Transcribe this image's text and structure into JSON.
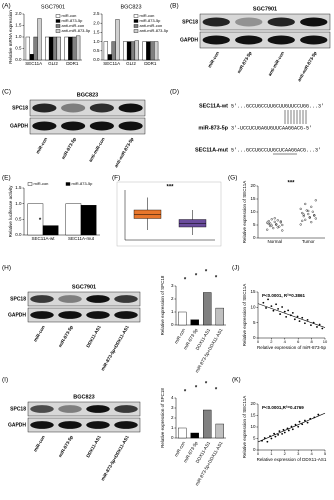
{
  "panel_labels": [
    "(A)",
    "(B)",
    "(C)",
    "(D)",
    "(E)",
    "(F)",
    "(G)",
    "(H)",
    "(I)",
    "(J)",
    "(K)"
  ],
  "blots": [
    {
      "cell": "SGC7901",
      "rows": [
        "SPC18",
        "GAPDH"
      ],
      "lanes": [
        "miR-con",
        "miR-873-5p",
        "anti-miR-con",
        "anti-miR-873-5p"
      ]
    },
    {
      "cell": "BGC823",
      "rows": [
        "SPC18",
        "GAPDH"
      ],
      "lanes": [
        "miR-con",
        "miR-873-5p",
        "anti-miR-con",
        "anti-miR-873-5p"
      ]
    },
    {
      "cell": "SGC7901",
      "rows": [
        "SPC18",
        "GAPDH"
      ],
      "lanes": [
        "miR-con",
        "miR-873-5p",
        "DDX11-AS1",
        "miR-873-5p+DDX11-AS1"
      ]
    },
    {
      "cell": "BGC823",
      "rows": [
        "SPC18",
        "GAPDH"
      ],
      "lanes": [
        "miR-con",
        "miR-873-5p",
        "DDX11-AS1",
        "miR-873-5p+DDX11-AS1"
      ]
    }
  ],
  "sequences": [
    {
      "name": "SEC11A-wt",
      "seq": "5'...GCCUGCCUUGCUUGUUCCUGG...3'"
    },
    {
      "name": "miR-873-5p",
      "seq": "3'-UCCUCUGAGUGUUCAAGGACG-5'"
    },
    {
      "name": "SEC11A-mut",
      "seq": "5'...GCCUGCCUUGCUCAAGGACG...3'"
    }
  ],
  "chart_data": [
    {
      "type": "grouped",
      "title": "SGC7901",
      "ylabel": "Relative mRNA expression",
      "categories": [
        "SEC11A",
        "GLI2",
        "DDR1"
      ],
      "series": [
        {
          "name": "miR-con",
          "color": "#ffffff",
          "values": [
            1.0,
            1.0,
            1.0
          ]
        },
        {
          "name": "miR-873-5p",
          "color": "#000000",
          "values": [
            0.25,
            1.0,
            1.0
          ]
        },
        {
          "name": "anti-miR-con",
          "color": "#808080",
          "values": [
            1.0,
            1.0,
            1.0
          ]
        },
        {
          "name": "anti-miR-873-5p",
          "color": "#d0d0d0",
          "values": [
            1.8,
            1.0,
            1.05
          ]
        }
      ],
      "ylim": [
        0,
        2
      ],
      "yticks": [
        {
          "value": 0,
          "label": "0.0"
        },
        {
          "value": 0.5,
          "label": "0.5"
        },
        {
          "value": 1,
          "label": "1.0"
        },
        {
          "value": 1.5,
          "label": "1.5"
        },
        {
          "value": 2,
          "label": "2.0"
        }
      ]
    },
    {
      "type": "grouped",
      "title": "BGC823",
      "categories": [
        "SEC11A",
        "GLI2",
        "DDR1"
      ],
      "series": [
        {
          "name": "miR-con",
          "color": "#ffffff",
          "values": [
            1.0,
            1.0,
            1.0
          ]
        },
        {
          "name": "miR-873-5p",
          "color": "#000000",
          "values": [
            0.3,
            1.0,
            1.0
          ]
        },
        {
          "name": "anti-miR-con",
          "color": "#808080",
          "values": [
            1.0,
            1.0,
            1.0
          ]
        },
        {
          "name": "anti-miR-873-5p",
          "color": "#d0d0d0",
          "values": [
            2.2,
            1.05,
            1.0
          ]
        }
      ],
      "ylim": [
        0,
        2.5
      ],
      "yticks": [
        {
          "value": 0,
          "label": "0.0"
        },
        {
          "value": 0.5,
          "label": "0.5"
        },
        {
          "value": 1,
          "label": "1.0"
        },
        {
          "value": 1.5,
          "label": "1.5"
        },
        {
          "value": 2,
          "label": "2.0"
        },
        {
          "value": 2.5,
          "label": "2.5"
        }
      ]
    },
    {
      "type": "grouped",
      "ylabel": "Relative luciferase activity",
      "categories": [
        "SEC11A-wt",
        "SEC11A-mut"
      ],
      "series": [
        {
          "name": "miR-con",
          "color": "#ffffff",
          "values": [
            1.0,
            1.0
          ]
        },
        {
          "name": "miR-873-5p",
          "color": "#000000",
          "values": [
            0.3,
            0.95
          ]
        }
      ],
      "ylim": [
        0,
        1.5
      ],
      "yticks": [
        {
          "value": 0,
          "label": "0.0"
        },
        {
          "value": 0.5,
          "label": "0.5"
        },
        {
          "value": 1,
          "label": "1.0"
        },
        {
          "value": 1.5,
          "label": "1.5"
        }
      ],
      "annotations": [
        "*"
      ]
    },
    {
      "type": "box",
      "categories": [
        null,
        null
      ],
      "boxes": [
        {
          "min": 2,
          "q1": 4.3,
          "median": 5.1,
          "q3": 6,
          "max": 8.5,
          "color": "#e8762b"
        },
        {
          "min": 1,
          "q1": 2.6,
          "median": 3.3,
          "q3": 4.1,
          "max": 6,
          "color": "#6a4c9c"
        }
      ],
      "ylim": [
        0,
        10
      ],
      "annotations": [
        "***"
      ]
    },
    {
      "type": "strip",
      "ylabel": "Relative expression of SEC11A",
      "categories": [
        "Normal",
        "Tumor"
      ],
      "values": [
        [
          3.2,
          4.1,
          4.8,
          5.0,
          5.3,
          5.6,
          6.0,
          6.2,
          6.5,
          4.4,
          3.8,
          5.9,
          6.8,
          7.2,
          2.9,
          5.1,
          4.6,
          6.4,
          7.6,
          5.4
        ],
        [
          5.2,
          6.1,
          7.0,
          7.5,
          8.0,
          8.4,
          8.8,
          9.2,
          9.6,
          10.1,
          10.6,
          11.2,
          12.0,
          13.1,
          14.5,
          7.8,
          9.0,
          8.6,
          10.4,
          6.6
        ]
      ],
      "ylim": [
        0,
        20
      ],
      "yticks": [
        0,
        5,
        10,
        15,
        20
      ],
      "annotations": [
        "***"
      ]
    },
    {
      "type": "bar",
      "ylabel": "Relative expression of SPC18",
      "categories": [
        "miR-con",
        "miR-873-5p",
        "DDX11-AS1",
        "miR-873-5p+DDX11-AS1"
      ],
      "values": [
        1.0,
        0.4,
        2.5,
        1.3
      ],
      "colors": [
        "#ffffff",
        "#000000",
        "#808080",
        "#c0c0c0"
      ],
      "ylim": [
        0,
        3
      ],
      "yticks": [
        0,
        1,
        2,
        3
      ],
      "annotations": [
        "*",
        "*",
        "*",
        "*"
      ]
    },
    {
      "type": "scatter",
      "ylabel": "Relative expression of SEC11A",
      "xlabel": "Relative expression of miR-873-5p",
      "stat_text": "P<0.0001, R²=0.3861",
      "x": [
        0.8,
        1.2,
        1.5,
        2.0,
        2.3,
        2.7,
        3.0,
        3.3,
        3.6,
        4.0,
        4.2,
        4.5,
        4.9,
        5.2,
        5.5,
        5.9,
        6.2,
        6.6,
        7.0,
        7.4,
        7.9,
        8.3,
        8.8,
        9.2,
        9.6
      ],
      "y": [
        11.5,
        9.8,
        12.6,
        10.4,
        8.9,
        11.0,
        9.5,
        7.8,
        10.1,
        8.6,
        6.9,
        9.0,
        7.4,
        8.2,
        6.1,
        7.0,
        5.5,
        6.6,
        4.8,
        5.9,
        4.2,
        5.0,
        3.6,
        4.4,
        3.1
      ],
      "trend": {
        "x": [
          0,
          10
        ],
        "y": [
          11.2,
          3.4
        ]
      },
      "xlim": [
        0,
        10
      ],
      "xticks": [
        0,
        2,
        4,
        6,
        8,
        10
      ],
      "ylim": [
        0,
        15
      ],
      "yticks": [
        0,
        5,
        10,
        15
      ]
    },
    {
      "type": "bar",
      "ylabel": "Relative expression of SPC18",
      "categories": [
        "miR-con",
        "miR-873-5p",
        "DDX11-AS1",
        "miR-873-5p+DDX11-AS1"
      ],
      "values": [
        1.0,
        0.5,
        2.8,
        1.4
      ],
      "colors": [
        "#ffffff",
        "#000000",
        "#808080",
        "#c0c0c0"
      ],
      "ylim": [
        0,
        4
      ],
      "yticks": [
        0,
        1,
        2,
        3,
        4
      ],
      "annotations": [
        "*",
        "*",
        "*",
        "*"
      ]
    },
    {
      "type": "scatter",
      "ylabel": "Relative expression of SEC11A",
      "xlabel": "Relative expression of DDX11-AS1",
      "stat_text": "P<0.0001,R²=0.4769",
      "x": [
        0.3,
        0.5,
        0.7,
        0.9,
        1.0,
        1.2,
        1.3,
        1.5,
        1.6,
        1.8,
        1.9,
        2.0,
        2.2,
        2.3,
        2.5,
        2.6,
        2.8,
        3.0,
        3.1,
        3.3,
        3.5,
        3.7,
        3.9,
        4.2,
        4.5
      ],
      "y": [
        4.0,
        5.2,
        3.6,
        6.0,
        5.0,
        7.1,
        5.8,
        6.6,
        8.2,
        7.0,
        8.8,
        7.6,
        9.4,
        8.5,
        10.2,
        9.0,
        11.0,
        10.1,
        12.3,
        11.2,
        12.8,
        11.9,
        13.6,
        14.2,
        15.4
      ],
      "trend": {
        "x": [
          0,
          5
        ],
        "y": [
          3.5,
          16
        ]
      },
      "xlim": [
        0,
        5
      ],
      "xticks": [
        0,
        1,
        2,
        3,
        4,
        5
      ],
      "ylim": [
        0,
        20
      ],
      "yticks": [
        0,
        5,
        10,
        15,
        20
      ]
    }
  ]
}
